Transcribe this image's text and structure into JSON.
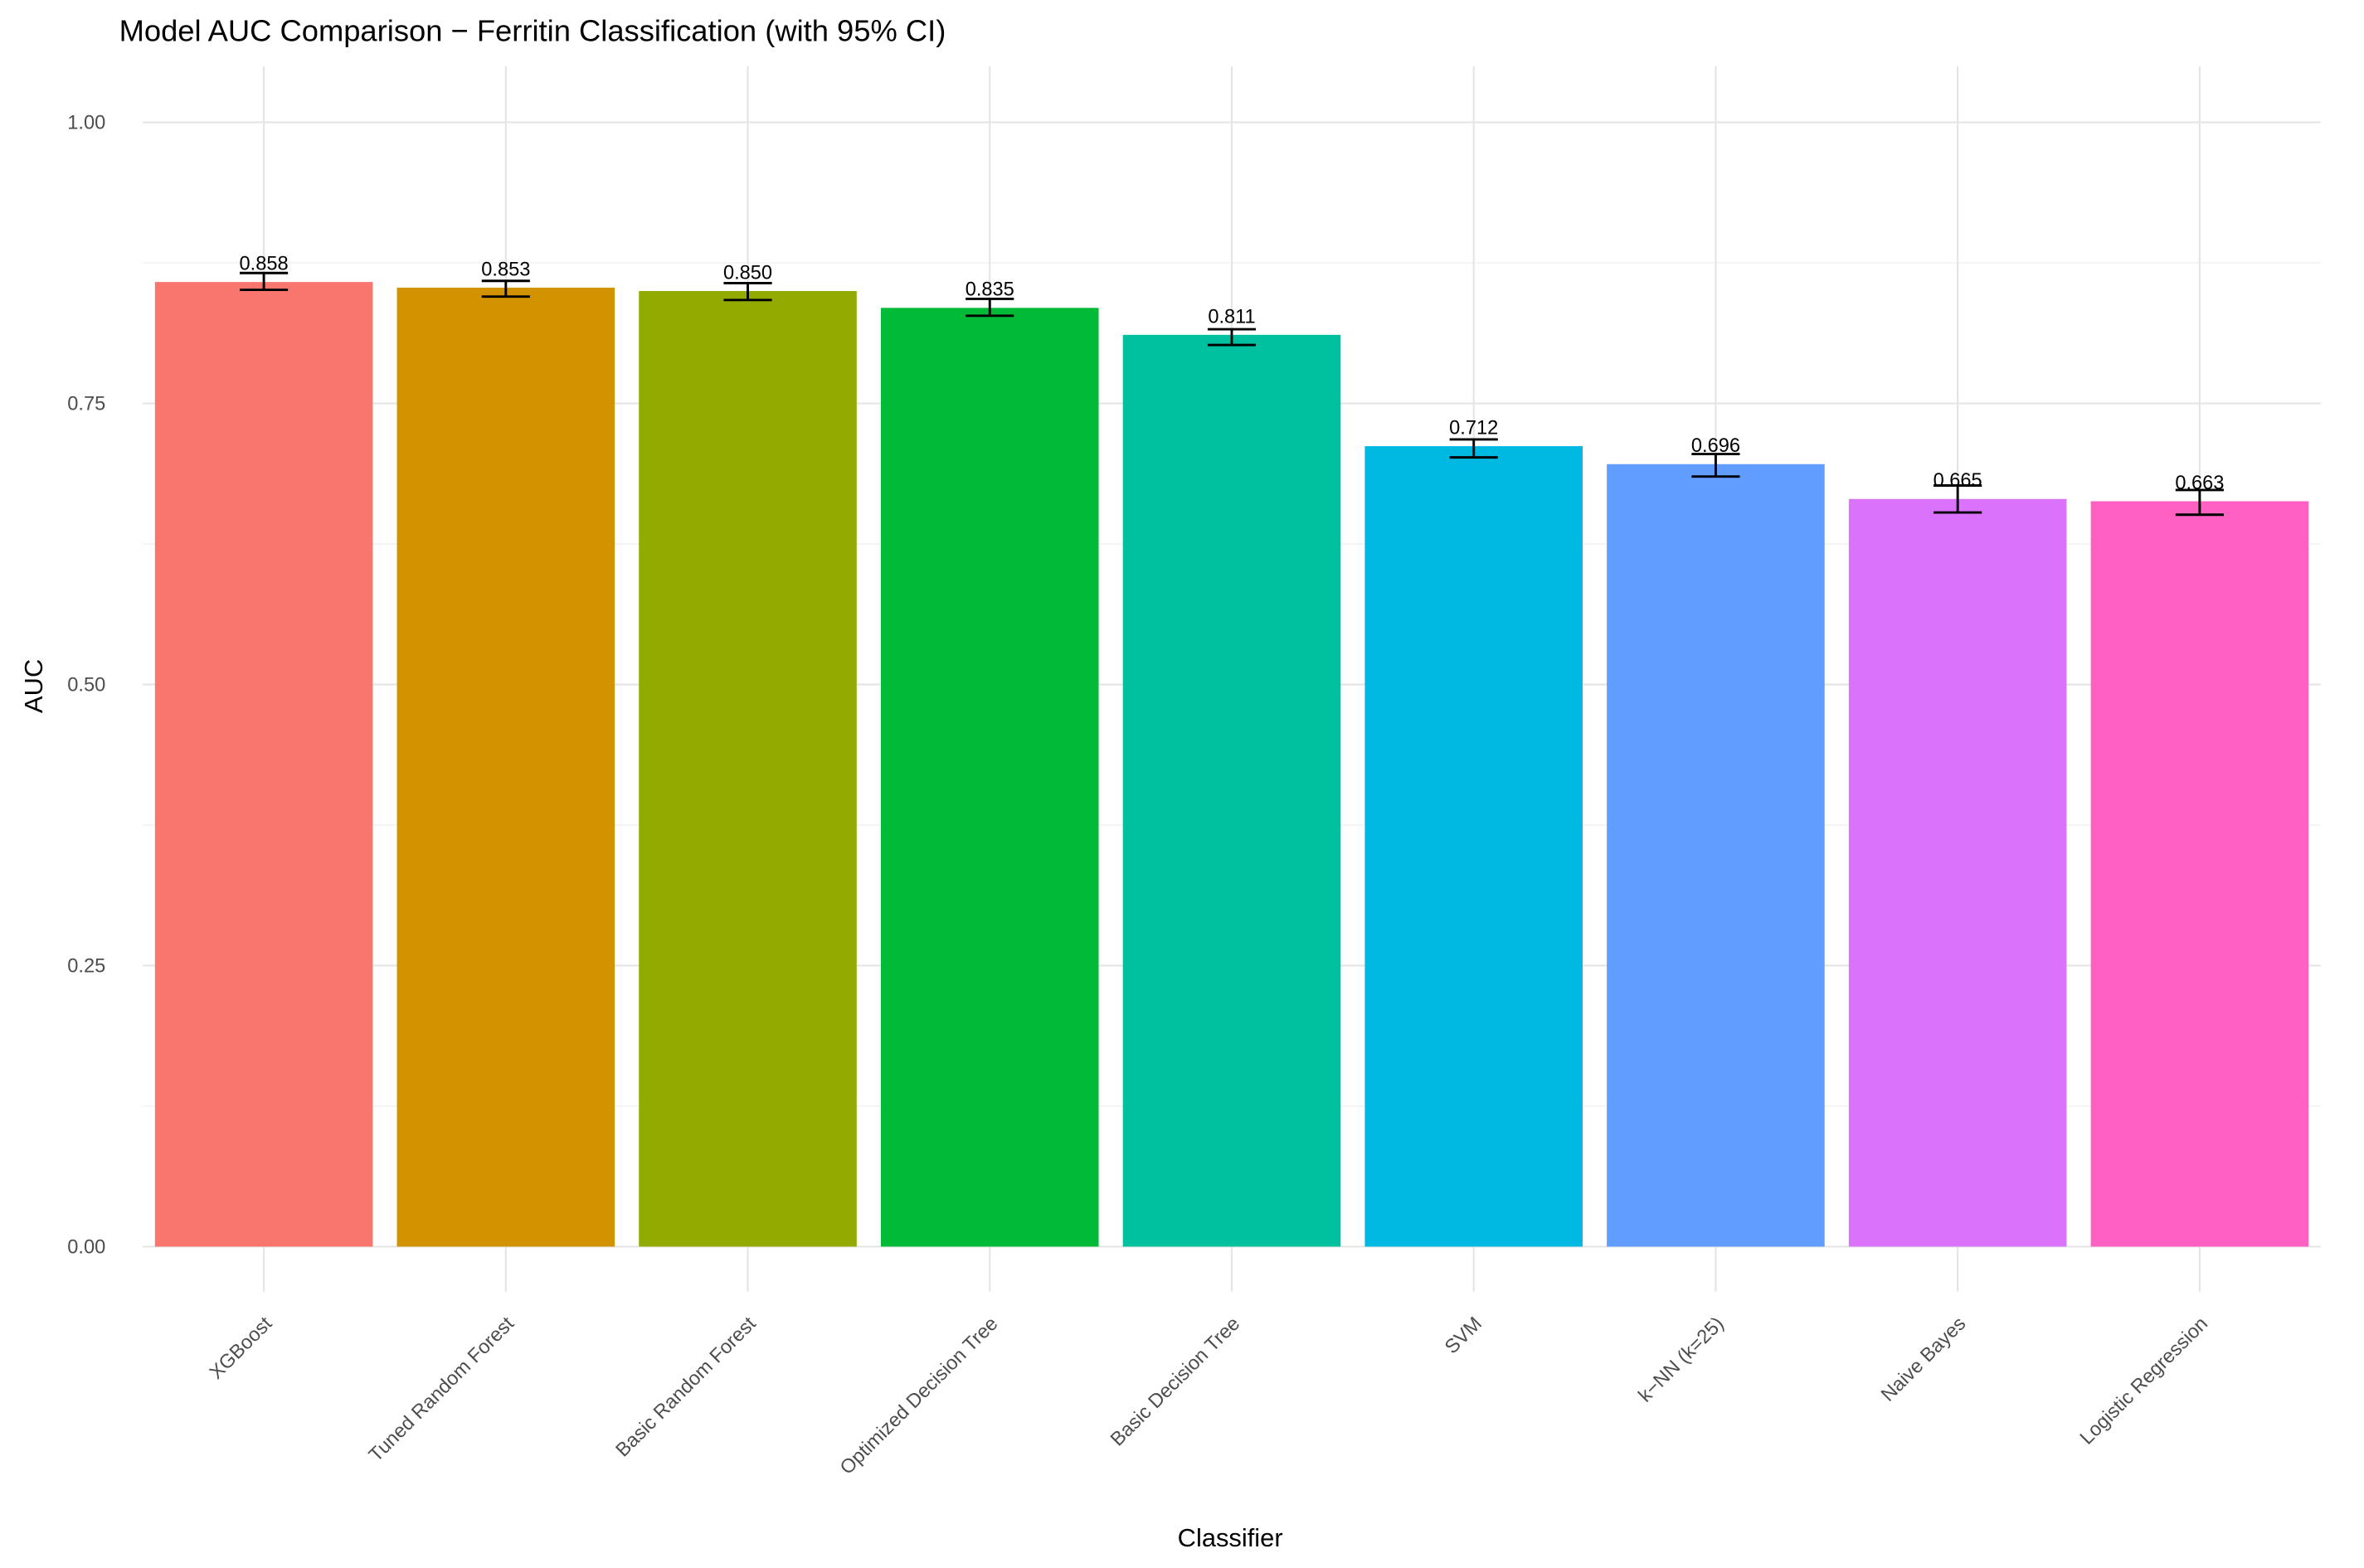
{
  "chart_data": {
    "type": "bar",
    "title": "Model AUC Comparison − Ferritin Classification (with 95% CI)",
    "x_label": "Classifier",
    "y_label": "AUC",
    "categories": [
      "XGBoost",
      "Tuned Random Forest",
      "Basic Random Forest",
      "Optimized Decision Tree",
      "Basic Decision Tree",
      "SVM",
      "k−NN (k=25)",
      "Naive Bayes",
      "Logistic Regression"
    ],
    "values": [
      0.858,
      0.853,
      0.85,
      0.835,
      0.811,
      0.712,
      0.696,
      0.665,
      0.663
    ],
    "value_labels": [
      "0.858",
      "0.853",
      "0.850",
      "0.835",
      "0.811",
      "0.712",
      "0.696",
      "0.665",
      "0.663"
    ],
    "ci_lower": [
      0.851,
      0.845,
      0.842,
      0.828,
      0.802,
      0.702,
      0.685,
      0.653,
      0.651
    ],
    "ci_upper": [
      0.866,
      0.859,
      0.857,
      0.843,
      0.816,
      0.718,
      0.705,
      0.677,
      0.673
    ],
    "colors": [
      "#F8766D",
      "#D39200",
      "#93AA00",
      "#00BA38",
      "#00C19F",
      "#00B9E3",
      "#619CFF",
      "#DB72FB",
      "#FF61C3"
    ],
    "ylim": [
      -0.04,
      1.05
    ],
    "yticks": [
      {
        "value": 0,
        "label": "0.00"
      },
      {
        "value": 0.25,
        "label": "0.25"
      },
      {
        "value": 0.5,
        "label": "0.50"
      },
      {
        "value": 0.75,
        "label": "0.75"
      },
      {
        "value": 1,
        "label": "1.00"
      }
    ],
    "grid": true
  }
}
